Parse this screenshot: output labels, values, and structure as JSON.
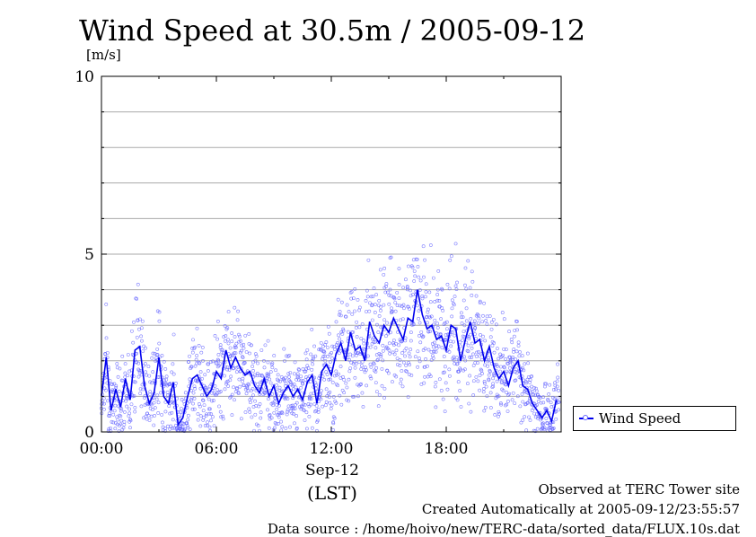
{
  "title": "Wind Speed at 30.5m / 2005-09-12",
  "unit_label": "[m/s]",
  "date_label": "Sep-12",
  "tz_label": "(LST)",
  "footer": {
    "line1": "Observed at TERC Tower site",
    "line2": "Created Automatically at 2005-09-12/23:55:57",
    "line3": "Data source : /home/hoivo/new/TERC-data/sorted_data/FLUX.10s.dat"
  },
  "colors": {
    "line": "#0000ee",
    "points": "#6666ff",
    "grid": "#aaaaaa"
  },
  "chart_data": {
    "type": "line",
    "title": "Wind Speed at 30.5m / 2005-09-12",
    "ylabel": "[m/s]",
    "xlabel": "(LST)",
    "xlim": [
      0,
      24
    ],
    "ylim": [
      0,
      10
    ],
    "x_ticks": [
      0,
      6,
      12,
      18
    ],
    "x_tick_labels": [
      "00:00",
      "06:00",
      "12:00",
      "18:00"
    ],
    "y_ticks": [
      0,
      5,
      10
    ],
    "y_tick_labels": [
      "0",
      "5",
      "10"
    ],
    "grid": "horizontal",
    "legend": "right",
    "series": [
      {
        "name": "Wind Speed",
        "x_hours": [
          0.0,
          0.25,
          0.5,
          0.75,
          1.0,
          1.25,
          1.5,
          1.75,
          2.0,
          2.25,
          2.5,
          2.75,
          3.0,
          3.25,
          3.5,
          3.75,
          4.0,
          4.25,
          4.5,
          4.75,
          5.0,
          5.25,
          5.5,
          5.75,
          6.0,
          6.25,
          6.5,
          6.75,
          7.0,
          7.25,
          7.5,
          7.75,
          8.0,
          8.25,
          8.5,
          8.75,
          9.0,
          9.25,
          9.5,
          9.75,
          10.0,
          10.25,
          10.5,
          10.75,
          11.0,
          11.25,
          11.5,
          11.75,
          12.0,
          12.25,
          12.5,
          12.75,
          13.0,
          13.25,
          13.5,
          13.75,
          14.0,
          14.25,
          14.5,
          14.75,
          15.0,
          15.25,
          15.5,
          15.75,
          16.0,
          16.25,
          16.5,
          16.75,
          17.0,
          17.25,
          17.5,
          17.75,
          18.0,
          18.25,
          18.5,
          18.75,
          19.0,
          19.25,
          19.5,
          19.75,
          20.0,
          20.25,
          20.5,
          20.75,
          21.0,
          21.25,
          21.5,
          21.75,
          22.0,
          22.25,
          22.5,
          22.75,
          23.0,
          23.25,
          23.5,
          23.75
        ],
        "values": [
          1.0,
          2.1,
          0.6,
          1.2,
          0.7,
          1.5,
          0.9,
          2.3,
          2.4,
          1.3,
          0.8,
          1.1,
          2.1,
          1.0,
          0.8,
          1.4,
          0.2,
          0.4,
          1.0,
          1.5,
          1.6,
          1.3,
          1.0,
          1.2,
          1.7,
          1.5,
          2.3,
          1.8,
          2.1,
          1.8,
          1.6,
          1.7,
          1.3,
          1.1,
          1.5,
          1.0,
          1.3,
          0.8,
          1.1,
          1.3,
          1.0,
          1.2,
          0.9,
          1.4,
          1.6,
          0.8,
          1.7,
          1.9,
          1.6,
          2.2,
          2.5,
          2.0,
          2.8,
          2.3,
          2.4,
          2.0,
          3.1,
          2.7,
          2.5,
          3.0,
          2.8,
          3.2,
          2.9,
          2.6,
          3.2,
          3.1,
          4.0,
          3.3,
          2.9,
          3.0,
          2.6,
          2.7,
          2.3,
          3.0,
          2.9,
          2.0,
          2.6,
          3.1,
          2.5,
          2.6,
          2.0,
          2.4,
          1.8,
          1.5,
          1.7,
          1.3,
          1.8,
          2.0,
          1.3,
          1.2,
          0.8,
          0.6,
          0.4,
          0.6,
          0.3,
          0.9
        ]
      }
    ]
  }
}
